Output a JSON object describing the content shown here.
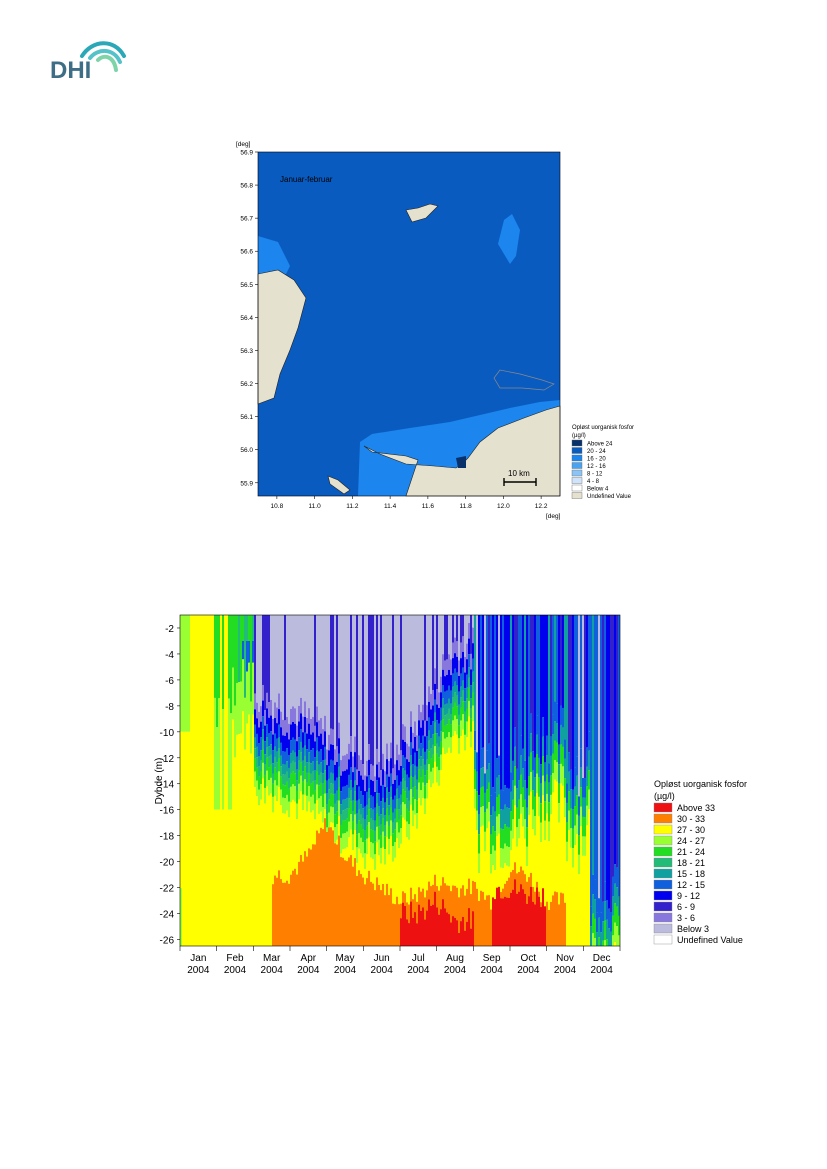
{
  "logo": {
    "text": "DHI"
  },
  "map": {
    "annotation": "Januar-februar",
    "y_unit": "[deg]",
    "x_unit": "[deg]",
    "x_ticks": [
      "10.8",
      "11.0",
      "11.2",
      "11.4",
      "11.6",
      "11.8",
      "12.0",
      "12.2"
    ],
    "y_ticks": [
      "56.9",
      "56.8",
      "56.7",
      "56.6",
      "56.5",
      "56.4",
      "56.3",
      "56.2",
      "56.1",
      "56.0",
      "55.9"
    ],
    "scale_bar": "10 km",
    "legend": {
      "title": "Opløst uorganisk fosfor",
      "unit": "(µg/l)",
      "entries": [
        {
          "label": "Above 24",
          "color": "#08306b"
        },
        {
          "label": "20 - 24",
          "color": "#0a5bbf"
        },
        {
          "label": "16 - 20",
          "color": "#1c86ee"
        },
        {
          "label": "12 - 16",
          "color": "#4aa3f0"
        },
        {
          "label": "8 - 12",
          "color": "#8cc4f5"
        },
        {
          "label": "4 - 8",
          "color": "#cfe4fb"
        },
        {
          "label": "Below 4",
          "color": "#ffffff"
        },
        {
          "label": "Undefined Value",
          "color": "#e4e1cf"
        }
      ]
    },
    "colors": {
      "water": "#0a5bbf",
      "shallow": "#1c86ee",
      "land": "#e4e1cf"
    }
  },
  "chart_data": {
    "type": "heatmap",
    "ylabel": "Dybde (m)",
    "ylim": [
      -26.5,
      -1
    ],
    "y_ticks": [
      -2,
      -4,
      -6,
      -8,
      -10,
      -12,
      -14,
      -16,
      -18,
      -20,
      -22,
      -24,
      -26
    ],
    "x_ticks": [
      {
        "month": "Jan",
        "year": "2004"
      },
      {
        "month": "Feb",
        "year": "2004"
      },
      {
        "month": "Mar",
        "year": "2004"
      },
      {
        "month": "Apr",
        "year": "2004"
      },
      {
        "month": "May",
        "year": "2004"
      },
      {
        "month": "Jun",
        "year": "2004"
      },
      {
        "month": "Jul",
        "year": "2004"
      },
      {
        "month": "Aug",
        "year": "2004"
      },
      {
        "month": "Sep",
        "year": "2004"
      },
      {
        "month": "Oct",
        "year": "2004"
      },
      {
        "month": "Nov",
        "year": "2004"
      },
      {
        "month": "Dec",
        "year": "2004"
      }
    ],
    "legend_title": "Opløst uorganisk fosfor",
    "legend_unit": "(µg/l)",
    "legend": [
      {
        "label": "Above 33",
        "color": "#ee1111"
      },
      {
        "label": "30 - 33",
        "color": "#ff8000"
      },
      {
        "label": "27 - 30",
        "color": "#ffff00"
      },
      {
        "label": "24 - 27",
        "color": "#99ff33"
      },
      {
        "label": "21 - 24",
        "color": "#22dd22"
      },
      {
        "label": "18 - 21",
        "color": "#22bb77"
      },
      {
        "label": "15 - 18",
        "color": "#11a0a0"
      },
      {
        "label": "12 - 15",
        "color": "#1060dd"
      },
      {
        "label": "9 - 12",
        "color": "#0000ee"
      },
      {
        "label": "6 - 9",
        "color": "#3322cc"
      },
      {
        "label": "3 - 6",
        "color": "#8877dd"
      },
      {
        "label": "Below 3",
        "color": "#bbbbdd"
      },
      {
        "label": "Undefined Value",
        "color": "#ffffff"
      }
    ],
    "profile": [
      {
        "month": 0.0,
        "low_below_3": null,
        "orange_top": null,
        "red_top": null
      },
      {
        "month": 0.5,
        "low_below_3": null,
        "orange_top": null,
        "red_top": null
      },
      {
        "month": 1.0,
        "low_below_3": null,
        "orange_top": null,
        "red_top": null
      },
      {
        "month": 1.5,
        "low_below_3": null,
        "orange_top": null,
        "red_top": null
      },
      {
        "month": 2.0,
        "low_below_3": -7,
        "orange_top": null,
        "red_top": null
      },
      {
        "month": 2.5,
        "low_below_3": -7.5,
        "orange_top": null,
        "red_top": null
      },
      {
        "month": 3.0,
        "low_below_3": -8,
        "orange_top": -21,
        "red_top": null
      },
      {
        "month": 3.5,
        "low_below_3": -9,
        "orange_top": -19.5,
        "red_top": null
      },
      {
        "month": 4.0,
        "low_below_3": -10,
        "orange_top": -17,
        "red_top": null
      },
      {
        "month": 4.5,
        "low_below_3": -11,
        "orange_top": -19.5,
        "red_top": null
      },
      {
        "month": 5.0,
        "low_below_3": -12,
        "orange_top": -21,
        "red_top": null
      },
      {
        "month": 5.5,
        "low_below_3": -12.5,
        "orange_top": -22,
        "red_top": null
      },
      {
        "month": 6.0,
        "low_below_3": -11,
        "orange_top": -23,
        "red_top": null
      },
      {
        "month": 6.5,
        "low_below_3": -9,
        "orange_top": -22.5,
        "red_top": -24
      },
      {
        "month": 7.0,
        "low_below_3": -6,
        "orange_top": -21.5,
        "red_top": -23
      },
      {
        "month": 7.5,
        "low_below_3": -3,
        "orange_top": -22,
        "red_top": -24.5
      },
      {
        "month": 8.0,
        "low_below_3": null,
        "orange_top": -22,
        "red_top": null
      },
      {
        "month": 8.5,
        "low_below_3": null,
        "orange_top": -23,
        "red_top": null
      },
      {
        "month": 9.0,
        "low_below_3": null,
        "orange_top": -20.5,
        "red_top": -22
      },
      {
        "month": 9.5,
        "low_below_3": null,
        "orange_top": -21,
        "red_top": -22.5
      },
      {
        "month": 10.0,
        "low_below_3": null,
        "orange_top": -23,
        "red_top": null
      },
      {
        "month": 10.5,
        "low_below_3": null,
        "orange_top": null,
        "red_top": null
      },
      {
        "month": 11.0,
        "low_below_3": null,
        "orange_top": null,
        "red_top": null
      },
      {
        "month": 11.5,
        "low_below_3": null,
        "orange_top": null,
        "red_top": null
      },
      {
        "month": 12.0,
        "low_below_3": null,
        "orange_top": null,
        "red_top": null
      }
    ]
  }
}
